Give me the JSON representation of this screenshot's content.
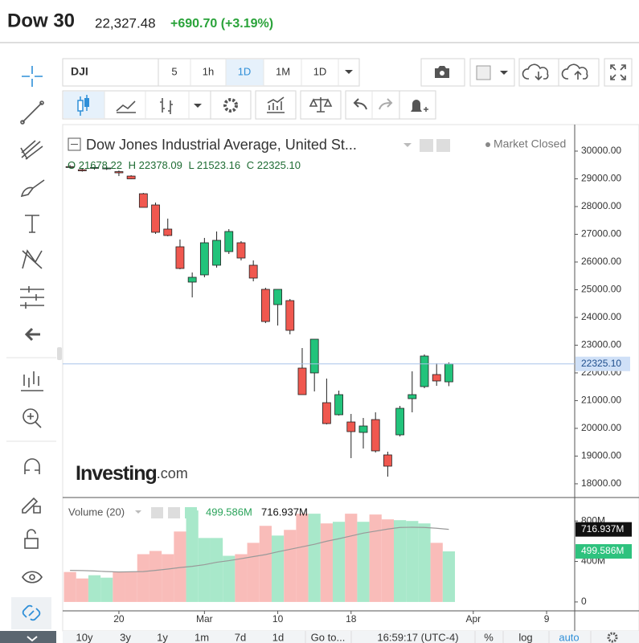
{
  "header": {
    "title": "Dow 30",
    "price": "22,327.48",
    "change": "+690.70 (+3.19%)"
  },
  "toolbar": {
    "symbol": "DJI",
    "intervals": [
      "5",
      "1h",
      "1D",
      "1M",
      "1D"
    ]
  },
  "bottom_bar": {
    "ranges": [
      "10y",
      "3y",
      "1y",
      "1m",
      "7d",
      "1d"
    ],
    "goto": "Go to...",
    "clock": "16:59:17 (UTC-4)",
    "percent": "%",
    "log": "log",
    "auto": "auto"
  },
  "watermark": {
    "brand": "Investing",
    "suffix": ".com"
  },
  "chart_data": [
    {
      "type": "candlestick",
      "title": "Dow Jones Industrial Average, United St...",
      "status": "Market Closed",
      "ohlc_letters": [
        "O",
        "H",
        "L",
        "C"
      ],
      "last_price_label": "22325.10",
      "up_color": "#22c37b",
      "down_color": "#f0584f",
      "xlim": [
        -0.6,
        41.3
      ],
      "xticks": [
        {
          "value": 4,
          "label": "20"
        },
        {
          "value": 11,
          "label": "Mar"
        },
        {
          "value": 17,
          "label": "10"
        },
        {
          "value": 23,
          "label": "18"
        },
        {
          "value": 33,
          "label": "Apr"
        },
        {
          "value": 39,
          "label": "9"
        }
      ],
      "ylim": [
        17534,
        30957
      ],
      "yticks": [
        {
          "value": 18000,
          "label": "18000.00"
        },
        {
          "value": 19000,
          "label": "19000.00"
        },
        {
          "value": 20000,
          "label": "20000.00"
        },
        {
          "value": 21000,
          "label": "21000.00"
        },
        {
          "value": 22000,
          "label": "22000.00"
        },
        {
          "value": 23000,
          "label": "23000.00"
        },
        {
          "value": 24000,
          "label": "24000.00"
        },
        {
          "value": 25000,
          "label": "25000.00"
        },
        {
          "value": 26000,
          "label": "26000.00"
        },
        {
          "value": 27000,
          "label": "27000.00"
        },
        {
          "value": 28000,
          "label": "28000.00"
        },
        {
          "value": 29000,
          "label": "29000.00"
        },
        {
          "value": 30000,
          "label": "30000.00"
        }
      ],
      "open": [
        29440,
        29330,
        29380,
        29360,
        29260,
        29100,
        28463,
        28058,
        27188,
        26550,
        25275,
        25536,
        25884,
        26376,
        26695,
        25884,
        25014,
        24463,
        24608,
        22173,
        21999,
        20926,
        20491,
        20230,
        19853,
        20317,
        19042,
        19766,
        21071,
        21506,
        21941,
        21678.22
      ],
      "high": [
        29500,
        29380,
        29430,
        29420,
        29300,
        29130,
        28492,
        28145,
        27565,
        26811,
        25622,
        26869,
        27101,
        27188,
        26753,
        26057,
        25072,
        25014,
        24666,
        22897,
        23216,
        21796,
        21361,
        20520,
        20375,
        20578,
        19158,
        20810,
        22057,
        22666,
        22347,
        22378.09
      ],
      "low": [
        29380,
        29260,
        29330,
        29320,
        29100,
        28990,
        27971,
        27014,
        26927,
        25738,
        24724,
        25449,
        25797,
        26289,
        26057,
        25304,
        23796,
        23709,
        23390,
        21216,
        21332,
        20143,
        20462,
        18926,
        19273,
        19129,
        18259,
        19708,
        20578,
        21448,
        21535,
        21523.16
      ],
      "close": [
        29420,
        29290,
        29410,
        29390,
        29217,
        29000,
        27971,
        27072,
        26956,
        25767,
        25449,
        26695,
        26782,
        27101,
        26144,
        25420,
        23854,
        25014,
        23535,
        21216,
        23216,
        20172,
        21216,
        19882,
        20085,
        19187,
        18636,
        20723,
        21216,
        22608,
        21709,
        22325.1
      ]
    },
    {
      "type": "bar",
      "title": "Volume (20)",
      "current_label": "499.586M",
      "ma_current_label": "716.937M",
      "up_color": "#a8e8ca",
      "down_color": "#f9bcb9",
      "ma_color": "#999999",
      "ylim": [
        -88,
        1016
      ],
      "yticks": [
        0,
        {
          "value": 400,
          "label": "400M"
        },
        {
          "value": 800,
          "label": "800M"
        }
      ],
      "values": [
        296,
        232,
        264,
        240,
        296,
        296,
        472,
        504,
        472,
        696,
        904,
        632,
        632,
        456,
        472,
        584,
        752,
        656,
        712,
        872,
        872,
        776,
        792,
        872,
        792,
        864,
        816,
        808,
        800,
        776,
        584,
        499.586
      ],
      "ma": [
        312,
        310,
        306,
        300,
        296,
        298,
        300,
        312,
        325,
        340,
        352,
        368,
        392,
        408,
        428,
        448,
        468,
        495,
        520,
        545,
        570,
        600,
        625,
        652,
        680,
        700,
        720,
        736,
        738,
        736,
        728,
        716.937
      ]
    }
  ]
}
